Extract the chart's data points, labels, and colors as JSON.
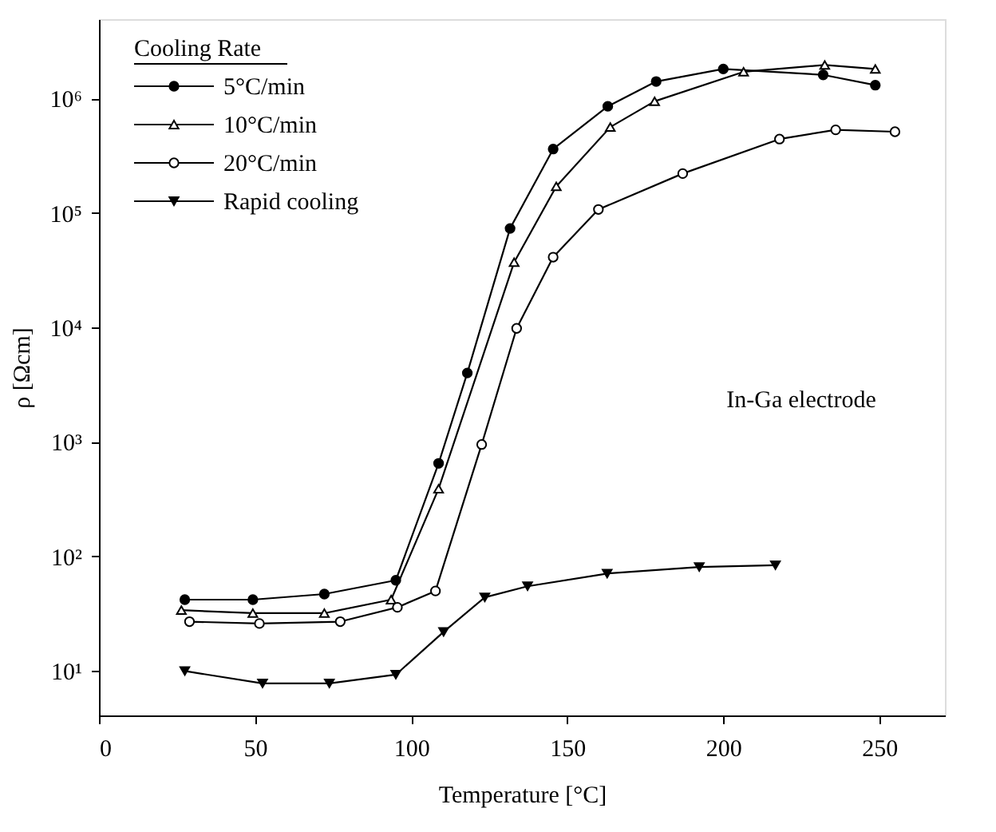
{
  "chart_data": {
    "type": "line",
    "xlabel": "Temperature [°C]",
    "ylabel": "ρ [Ωcm]",
    "legend_title": "Cooling Rate",
    "legend": "top left",
    "log": "y",
    "grid": false,
    "line_style": "solid",
    "xlim": [
      0,
      271
    ],
    "xticks": [
      0,
      50,
      100,
      150,
      200,
      250
    ],
    "ylim": [
      4.1,
      4900000
    ],
    "yticks": [
      {
        "value": 10,
        "label": "10¹"
      },
      {
        "value": 100,
        "label": "10²"
      },
      {
        "value": 1000,
        "label": "10³"
      },
      {
        "value": 10000,
        "label": "10⁴"
      },
      {
        "value": 100000,
        "label": "10⁵"
      },
      {
        "value": 1000000,
        "label": "10⁶"
      }
    ],
    "annotations": [
      "In-Ga electrode"
    ],
    "series": [
      {
        "name": "5°C/min",
        "color": "#000000",
        "marker": "circle",
        "x": [
          27.5,
          49.3,
          72.2,
          95.1,
          108.8,
          118,
          131.7,
          145.5,
          163,
          178.5,
          200,
          232,
          248.7
        ],
        "values": [
          42,
          42,
          47,
          62,
          650,
          4000,
          73000,
          360000,
          850000,
          1400000,
          1800000,
          1600000,
          1300000
        ]
      },
      {
        "name": "10°C/min",
        "color": "#000000",
        "marker": "triangle-open",
        "x": [
          26.4,
          49.3,
          72.2,
          93.6,
          108.8,
          133,
          146.5,
          163.8,
          178,
          206.5,
          232.5,
          248.7
        ],
        "values": [
          34,
          32,
          32,
          42,
          390,
          37000,
          170000,
          560000,
          940000,
          1700000,
          1950000,
          1800000
        ]
      },
      {
        "name": "20°C/min",
        "color": "#000000",
        "marker": "circle-open",
        "x": [
          29,
          51.4,
          77.3,
          95.6,
          107.8,
          122.6,
          133.8,
          145.5,
          160,
          187,
          218,
          236,
          255
        ],
        "values": [
          27,
          26,
          27,
          36,
          50,
          950,
          9800,
          41000,
          107000,
          220000,
          440000,
          530000,
          510000
        ]
      },
      {
        "name": "Rapid cooling",
        "color": "#000000",
        "marker": "triangle-down",
        "x": [
          27.5,
          52.4,
          73.8,
          95.1,
          110.4,
          123.6,
          137.3,
          162.8,
          192.3,
          216.7
        ],
        "values": [
          10,
          7.8,
          7.8,
          9.3,
          22,
          44,
          55,
          71,
          81,
          84
        ]
      }
    ]
  }
}
